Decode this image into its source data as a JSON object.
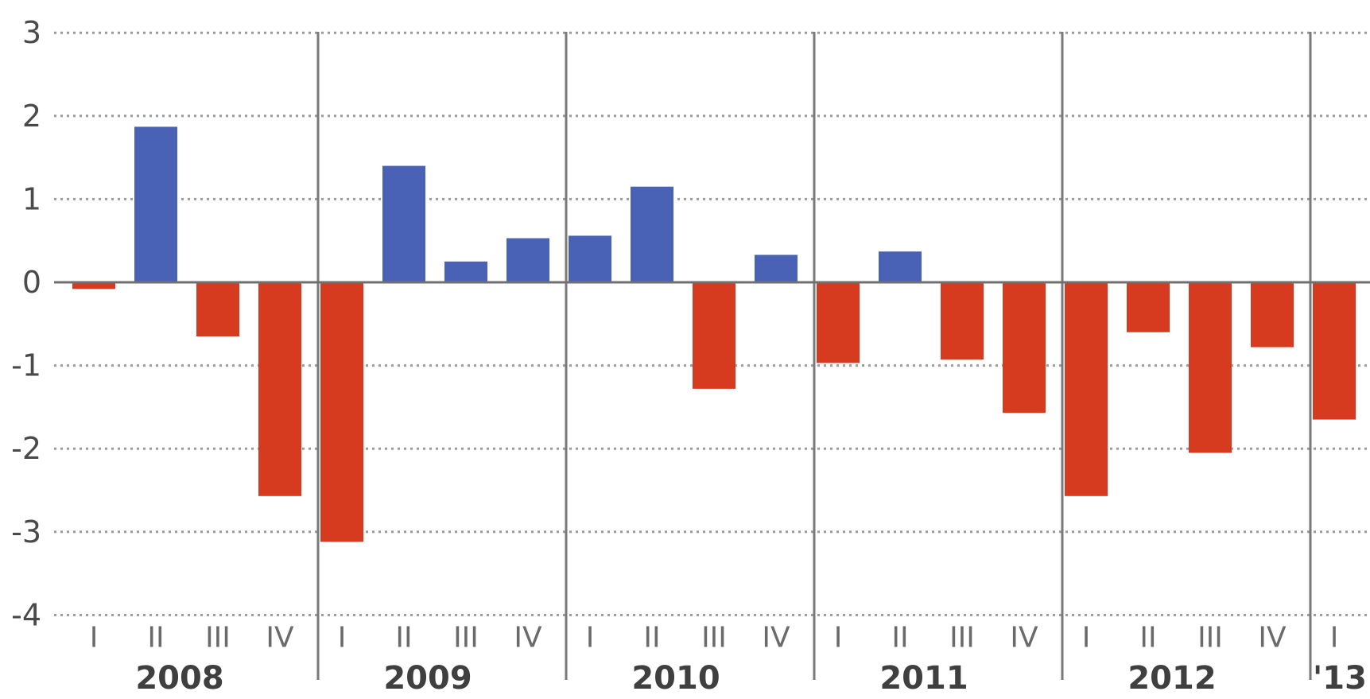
{
  "chart_data": {
    "type": "bar",
    "title": "",
    "xlabel": "",
    "ylabel": "",
    "ylim": [
      -4,
      3
    ],
    "yticks": [
      3,
      2,
      1,
      0,
      -1,
      -2,
      -3,
      -4
    ],
    "grid": true,
    "colors": {
      "positive": "#4a62b5",
      "negative": "#d63b1f"
    },
    "quarter_labels": [
      "I",
      "II",
      "III",
      "IV"
    ],
    "years": [
      {
        "label": "2008",
        "values": [
          -0.08,
          1.87,
          -0.65,
          -2.57
        ]
      },
      {
        "label": "2009",
        "values": [
          -3.12,
          1.4,
          0.25,
          0.53
        ]
      },
      {
        "label": "2010",
        "values": [
          0.56,
          1.15,
          -1.28,
          0.33
        ]
      },
      {
        "label": "2011",
        "values": [
          -0.97,
          0.37,
          -0.93,
          -1.57
        ]
      },
      {
        "label": "2012",
        "values": [
          -2.57,
          -0.6,
          -2.05,
          -0.78
        ]
      },
      {
        "label": "'13",
        "values": [
          -1.65
        ]
      }
    ]
  }
}
